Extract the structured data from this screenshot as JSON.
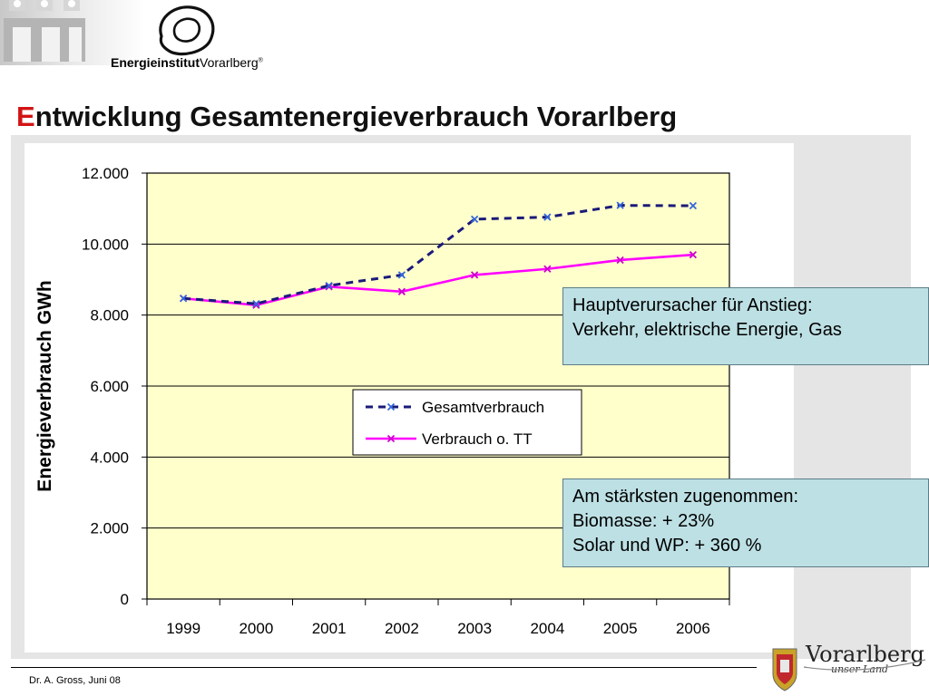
{
  "header": {
    "institute_bold": "Energieinstitut",
    "institute_rest": "Vorarlberg",
    "institute_mark": "®"
  },
  "slide": {
    "title_first": "E",
    "title_rest": "ntwicklung Gesamtenergieverbrauch Vorarlberg"
  },
  "chart_data": {
    "type": "line",
    "title": "",
    "xlabel": "",
    "ylabel": "Energieverbrauch GWh",
    "categories": [
      "1999",
      "2000",
      "2001",
      "2002",
      "2003",
      "2004",
      "2005",
      "2006"
    ],
    "ylim": [
      0,
      12000
    ],
    "yticks": [
      0,
      2000,
      4000,
      6000,
      8000,
      10000,
      12000
    ],
    "ytick_labels": [
      "0",
      "2.000",
      "4.000",
      "6.000",
      "8.000",
      "10.000",
      "12.000"
    ],
    "grid": true,
    "plot_background": "#ffffcc",
    "legend_position": "center-right",
    "series": [
      {
        "name": "Gesamtverbrauch",
        "style": "dashed",
        "color": "#1a1a7a",
        "marker_color": "#3366dd",
        "values": [
          8470,
          8320,
          8830,
          9130,
          10700,
          10760,
          11090,
          11080
        ]
      },
      {
        "name": "Verbrauch o. TT",
        "style": "solid",
        "color": "#ff00ff",
        "marker_color": "#cc00cc",
        "values": [
          8470,
          8280,
          8800,
          8660,
          9130,
          9300,
          9550,
          9700
        ]
      }
    ]
  },
  "notes": [
    {
      "lines": [
        "Hauptverursacher für Anstieg:",
        "Verkehr, elektrische Energie, Gas"
      ]
    },
    {
      "lines": [
        "Am stärksten zugenommen:",
        "Biomasse: + 23%",
        "Solar und WP: + 360 %"
      ]
    }
  ],
  "footer": {
    "author": "Dr. A. Gross, Juni 08"
  },
  "brand": {
    "name": "Vorarlberg",
    "tagline": "unser Land"
  }
}
